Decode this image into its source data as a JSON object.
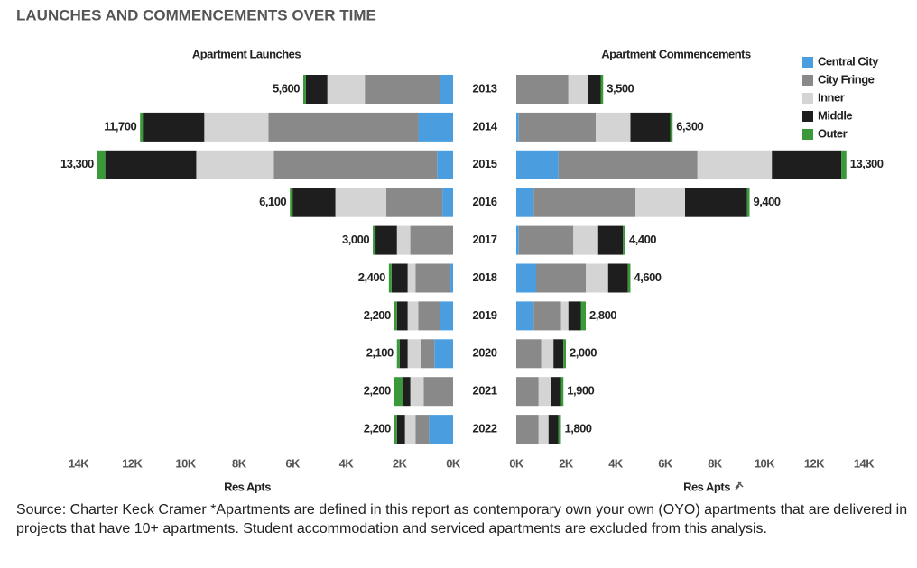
{
  "title": "LAUNCHES AND COMMENCEMENTS OVER TIME",
  "source": "Source: Charter Keck Cramer *Apartments are defined in this report as contemporary own your own (OYO) apartments that are delivered in projects that have 10+ apartments. Student accommodation and serviced apartments are excluded from this analysis.",
  "chart_data": [
    {
      "type": "bar",
      "orientation": "horizontal",
      "stacked": true,
      "title": "Apartment Launches",
      "xlabel": "Res Apts",
      "xreverse": true,
      "categories": [
        "2013",
        "2014",
        "2015",
        "2016",
        "2017",
        "2018",
        "2019",
        "2020",
        "2021",
        "2022"
      ],
      "series": [
        {
          "color": "#4a9ee0",
          "values": [
            500,
            1300,
            600,
            400,
            0,
            100,
            500,
            700,
            0,
            900
          ]
        },
        {
          "color": "#898989",
          "values": [
            2800,
            5600,
            6100,
            2100,
            1600,
            1300,
            800,
            500,
            1100,
            500
          ]
        },
        {
          "color": "#d4d4d4",
          "values": [
            1400,
            2400,
            2900,
            1900,
            500,
            300,
            400,
            500,
            500,
            400
          ]
        },
        {
          "color": "#1e1e1e",
          "values": [
            800,
            2300,
            3400,
            1600,
            800,
            600,
            400,
            300,
            300,
            300
          ]
        },
        {
          "color": "#3a9a3a",
          "values": [
            100,
            100,
            300,
            100,
            100,
            100,
            100,
            100,
            300,
            100
          ]
        }
      ],
      "totals": [
        5600,
        11700,
        13300,
        6100,
        3000,
        2400,
        2200,
        2100,
        2200,
        2200
      ],
      "total_labels": [
        "5,600",
        "11,700",
        "13,300",
        "6,100",
        "3,000",
        "2,400",
        "2,200",
        "2,100",
        "2,200",
        "2,200"
      ],
      "xlim": [
        0,
        14000
      ],
      "xticks": [
        {
          "value": 14000,
          "label": "14K"
        },
        {
          "value": 12000,
          "label": "12K"
        },
        {
          "value": 10000,
          "label": "10K"
        },
        {
          "value": 8000,
          "label": "8K"
        },
        {
          "value": 6000,
          "label": "6K"
        },
        {
          "value": 4000,
          "label": "4K"
        },
        {
          "value": 2000,
          "label": "2K"
        },
        {
          "value": 0,
          "label": "0K"
        }
      ]
    },
    {
      "type": "bar",
      "orientation": "horizontal",
      "stacked": true,
      "title": "Apartment Commencements",
      "xlabel": "Res Apts",
      "legend": "upper right",
      "series": [
        {
          "name": "Central City",
          "color": "#4a9ee0",
          "values": [
            0,
            100,
            1700,
            700,
            100,
            800,
            700,
            0,
            0,
            0
          ]
        },
        {
          "name": "City Fringe",
          "color": "#898989",
          "values": [
            2100,
            3100,
            5600,
            4100,
            2200,
            2000,
            1100,
            1000,
            900,
            900
          ]
        },
        {
          "name": "Inner",
          "color": "#d4d4d4",
          "values": [
            800,
            1400,
            3000,
            2000,
            1000,
            900,
            300,
            500,
            500,
            400
          ]
        },
        {
          "name": "Middle",
          "color": "#1e1e1e",
          "values": [
            500,
            1600,
            2800,
            2500,
            1000,
            800,
            500,
            400,
            400,
            400
          ]
        },
        {
          "name": "Outer",
          "color": "#3a9a3a",
          "values": [
            100,
            100,
            200,
            100,
            100,
            100,
            200,
            100,
            100,
            100
          ]
        }
      ],
      "totals": [
        3500,
        6300,
        13300,
        9400,
        4400,
        4600,
        2800,
        2000,
        1900,
        1800
      ],
      "total_labels": [
        "3,500",
        "6,300",
        "13,300",
        "9,400",
        "4,400",
        "4,600",
        "2,800",
        "2,000",
        "1,900",
        "1,800"
      ],
      "xlim": [
        0,
        14000
      ],
      "xticks": [
        {
          "value": 0,
          "label": "0K"
        },
        {
          "value": 2000,
          "label": "2K"
        },
        {
          "value": 4000,
          "label": "4K"
        },
        {
          "value": 6000,
          "label": "6K"
        },
        {
          "value": 8000,
          "label": "8K"
        },
        {
          "value": 10000,
          "label": "10K"
        },
        {
          "value": 12000,
          "label": "12K"
        },
        {
          "value": 14000,
          "label": "14K"
        }
      ]
    }
  ]
}
